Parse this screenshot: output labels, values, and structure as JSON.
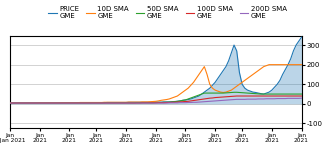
{
  "chart_data": {
    "type": "line",
    "categories": [
      "Jan\n2/Jan 2021",
      null,
      null,
      null,
      null,
      null,
      null,
      null,
      null,
      null,
      null,
      "Jan\n2021",
      null,
      null,
      null,
      null,
      null,
      null,
      null,
      null,
      null,
      null,
      "Jan\n2021",
      null,
      null,
      null,
      null,
      null,
      null,
      null,
      null,
      null,
      "Jan\n2021",
      null,
      null,
      null,
      null,
      null,
      null,
      null,
      null,
      null,
      null,
      "Jan\n2021",
      null,
      null,
      null,
      null,
      null,
      null,
      null,
      null,
      null,
      null,
      "Jan\n2021",
      null,
      null,
      null,
      null,
      null,
      null,
      null,
      null,
      null,
      null,
      "Jan\n2021",
      null,
      null,
      null,
      null,
      null,
      null,
      null,
      null,
      null,
      null,
      "Jan\n2021",
      null,
      null,
      null,
      null,
      null,
      null,
      null,
      null,
      null,
      "Jan\n2021",
      null,
      null,
      null,
      null,
      null,
      null,
      null,
      null,
      null,
      null,
      "Jan\n2021",
      null,
      null,
      null,
      null,
      null,
      null,
      null,
      null,
      null,
      null,
      "Jan\n2021"
    ],
    "series": [
      {
        "name": "PRICE\nGME",
        "type": "area",
        "values": [
          4,
          4,
          4,
          4,
          4,
          4,
          4,
          4,
          4,
          4,
          4,
          4,
          4,
          4,
          4,
          4,
          4,
          4,
          4,
          4,
          5,
          5,
          5,
          5,
          5,
          5,
          5,
          5,
          5,
          5,
          5,
          6,
          6,
          6,
          6,
          6,
          7,
          7,
          7,
          7,
          7,
          7,
          7,
          7,
          8,
          8,
          8,
          8,
          8,
          8,
          8,
          8,
          8,
          8,
          9,
          9,
          9,
          10,
          10,
          10,
          11,
          12,
          13,
          15,
          18,
          20,
          22,
          25,
          30,
          35,
          40,
          50,
          60,
          70,
          80,
          95,
          110,
          130,
          150,
          170,
          190,
          220,
          260,
          300,
          270,
          160,
          100,
          80,
          70,
          65,
          60,
          58,
          55,
          52,
          50,
          55,
          60,
          70,
          85,
          100,
          120,
          150,
          175,
          200,
          230,
          270,
          300,
          320,
          340
        ]
      },
      {
        "name": "10D SMA\nGME",
        "type": "line",
        "values": [
          4,
          4,
          4,
          4,
          4,
          4,
          4,
          4,
          4,
          4,
          4,
          5,
          5,
          5,
          5,
          5,
          5,
          5,
          5,
          6,
          6,
          6,
          6,
          6,
          6,
          6,
          7,
          7,
          7,
          7,
          7,
          7,
          7,
          7,
          7,
          8,
          8,
          8,
          8,
          8,
          8,
          8,
          8,
          8,
          9,
          9,
          9,
          9,
          9,
          10,
          10,
          10,
          11,
          12,
          13,
          15,
          18,
          20,
          22,
          25,
          30,
          35,
          40,
          50,
          60,
          70,
          80,
          95,
          110,
          130,
          150,
          170,
          190,
          150,
          100,
          80,
          70,
          65,
          60,
          58,
          60,
          65,
          70,
          80,
          90,
          100,
          110,
          120,
          130,
          140,
          150,
          160,
          170,
          180,
          190,
          195,
          200,
          200,
          200,
          200,
          200,
          200,
          200,
          200,
          200,
          200,
          200,
          200,
          200
        ]
      },
      {
        "name": "50D SMA\nGME",
        "type": "line",
        "values": [
          4,
          4,
          4,
          4,
          4,
          4,
          4,
          4,
          4,
          4,
          4,
          4,
          4,
          4,
          4,
          4,
          4,
          4,
          4,
          4,
          4,
          4,
          4,
          4,
          4,
          4,
          4,
          4,
          4,
          4,
          4,
          4,
          4,
          4,
          4,
          5,
          5,
          5,
          5,
          5,
          5,
          5,
          5,
          5,
          5,
          5,
          5,
          6,
          6,
          6,
          6,
          6,
          6,
          6,
          7,
          7,
          7,
          8,
          8,
          9,
          10,
          11,
          13,
          15,
          18,
          20,
          25,
          30,
          35,
          40,
          45,
          50,
          55,
          55,
          55,
          55,
          55,
          55,
          55,
          55,
          56,
          57,
          58,
          59,
          59,
          58,
          57,
          56,
          55,
          54,
          53,
          52,
          51,
          50,
          50,
          50,
          50,
          50,
          50,
          50,
          50,
          50,
          50,
          50,
          50,
          50,
          50,
          50,
          50
        ]
      },
      {
        "name": "100D SMA\nGME",
        "type": "line",
        "values": [
          4,
          4,
          4,
          4,
          4,
          4,
          4,
          4,
          4,
          4,
          4,
          4,
          4,
          4,
          4,
          4,
          4,
          4,
          4,
          4,
          4,
          4,
          4,
          4,
          4,
          4,
          4,
          4,
          4,
          4,
          4,
          4,
          4,
          4,
          4,
          4,
          4,
          4,
          4,
          4,
          4,
          4,
          4,
          4,
          4,
          4,
          4,
          4,
          4,
          5,
          5,
          5,
          5,
          5,
          5,
          6,
          6,
          6,
          7,
          7,
          8,
          8,
          9,
          10,
          11,
          12,
          13,
          15,
          17,
          19,
          21,
          23,
          25,
          27,
          29,
          30,
          32,
          33,
          34,
          35,
          36,
          37,
          38,
          39,
          40,
          40,
          40,
          40,
          40,
          40,
          40,
          40,
          40,
          40,
          40,
          40,
          40,
          40,
          40,
          40,
          40,
          40,
          40,
          40,
          40,
          40,
          40,
          40,
          40
        ]
      },
      {
        "name": "200D SMA\nGME",
        "type": "line",
        "values": [
          4,
          4,
          4,
          4,
          4,
          4,
          4,
          4,
          4,
          4,
          4,
          4,
          4,
          4,
          4,
          4,
          4,
          4,
          4,
          4,
          4,
          4,
          4,
          4,
          4,
          4,
          4,
          4,
          4,
          4,
          4,
          4,
          4,
          4,
          4,
          4,
          4,
          4,
          4,
          4,
          4,
          4,
          4,
          4,
          4,
          4,
          4,
          4,
          4,
          4,
          4,
          4,
          4,
          4,
          4,
          4,
          4,
          4,
          4,
          5,
          5,
          5,
          5,
          6,
          6,
          6,
          7,
          7,
          8,
          8,
          9,
          10,
          11,
          12,
          13,
          14,
          15,
          16,
          17,
          18,
          19,
          20,
          21,
          22,
          23,
          23,
          23,
          23,
          24,
          24,
          24,
          24,
          25,
          25,
          25,
          26,
          26,
          26,
          26,
          27,
          27,
          27,
          27,
          28,
          28,
          28,
          28,
          28,
          29
        ]
      }
    ],
    "ylim": [
      -125,
      345
    ],
    "yticks": [
      -100,
      0,
      100,
      200,
      300
    ],
    "grid": true,
    "legend": "upper center"
  }
}
